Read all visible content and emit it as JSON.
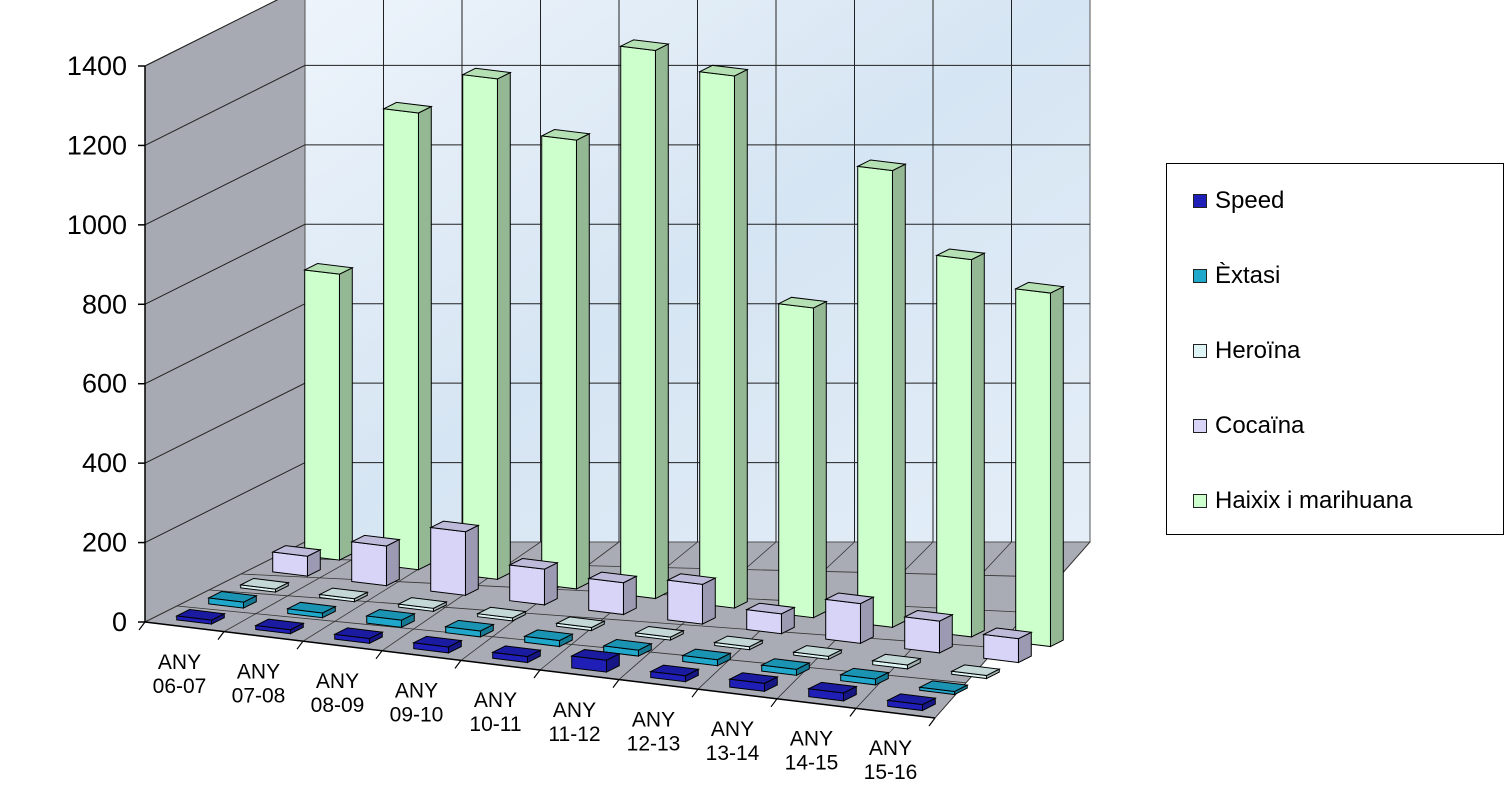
{
  "chart_data": {
    "type": "bar",
    "subtype": "3d-clustered-depth",
    "categories": [
      [
        "ANY",
        "06-07"
      ],
      [
        "ANY",
        "07-08"
      ],
      [
        "ANY",
        "08-09"
      ],
      [
        "ANY",
        "09-10"
      ],
      [
        "ANY",
        "10-11"
      ],
      [
        "ANY",
        "11-12"
      ],
      [
        "ANY",
        "12-13"
      ],
      [
        "ANY",
        "13-14"
      ],
      [
        "ANY",
        "14-15"
      ],
      [
        "ANY",
        "15-16"
      ]
    ],
    "series": [
      {
        "name": "Speed",
        "color": "#1f1fb8",
        "values": [
          10,
          10,
          12,
          15,
          15,
          30,
          15,
          20,
          20,
          15
        ]
      },
      {
        "name": "Èxtasi",
        "color": "#1fa8cc",
        "values": [
          15,
          12,
          18,
          15,
          15,
          15,
          15,
          15,
          15,
          0
        ]
      },
      {
        "name": "Heroïna",
        "color": "#dff5f5",
        "values": [
          5,
          5,
          5,
          5,
          5,
          5,
          5,
          5,
          10,
          5
        ]
      },
      {
        "name": "Cocaïna",
        "color": "#d8d4f8",
        "values": [
          50,
          100,
          160,
          90,
          80,
          100,
          50,
          100,
          80,
          60
        ]
      },
      {
        "name": "Haixix i marihuana",
        "color": "#ccffcc",
        "values": [
          720,
          1150,
          1260,
          1130,
          1380,
          1340,
          780,
          1150,
          950,
          890
        ]
      }
    ],
    "yticks": [
      "0",
      "200",
      "400",
      "600",
      "800",
      "1000",
      "1200",
      "1400"
    ],
    "ylim": [
      0,
      1400
    ],
    "grid": true,
    "legend_position": "right"
  }
}
